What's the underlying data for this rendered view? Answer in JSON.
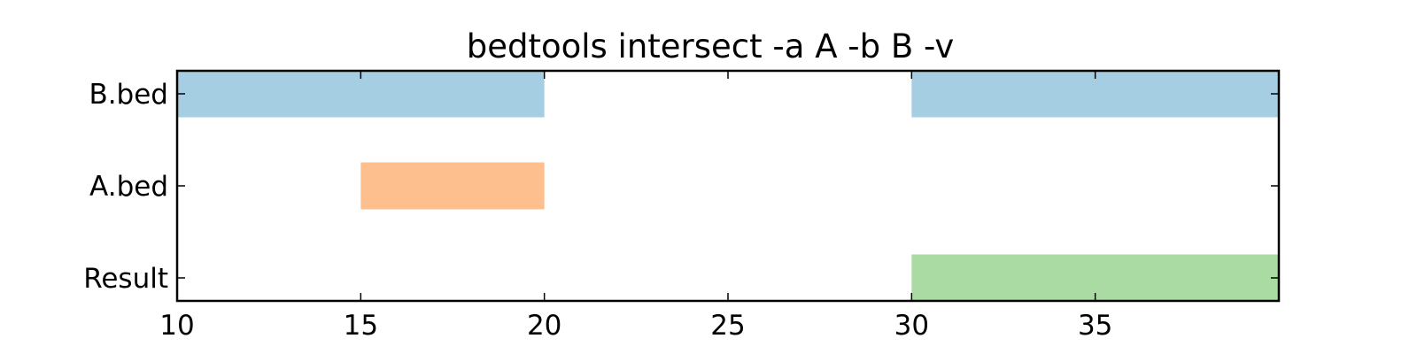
{
  "chart_data": {
    "type": "bar",
    "orientation": "horizontal-intervals",
    "title": "bedtools intersect -a A -b B -v",
    "xlabel": "",
    "ylabel": "",
    "xlim": [
      10,
      40
    ],
    "xticks": [
      10,
      15,
      20,
      25,
      30,
      35
    ],
    "x_tick_labels": [
      "10",
      "15",
      "20",
      "25",
      "30",
      "35"
    ],
    "categories": [
      "B.bed",
      "A.bed",
      "Result"
    ],
    "series": [
      {
        "category": "B.bed",
        "color": "#a6cee3",
        "intervals": [
          [
            10,
            20
          ],
          [
            30,
            40
          ]
        ]
      },
      {
        "category": "A.bed",
        "color": "#fdbf8e",
        "intervals": [
          [
            15,
            20
          ]
        ]
      },
      {
        "category": "Result",
        "color": "#a9dba2",
        "intervals": [
          [
            30,
            40
          ]
        ]
      }
    ],
    "grid": false,
    "legend": "none"
  }
}
